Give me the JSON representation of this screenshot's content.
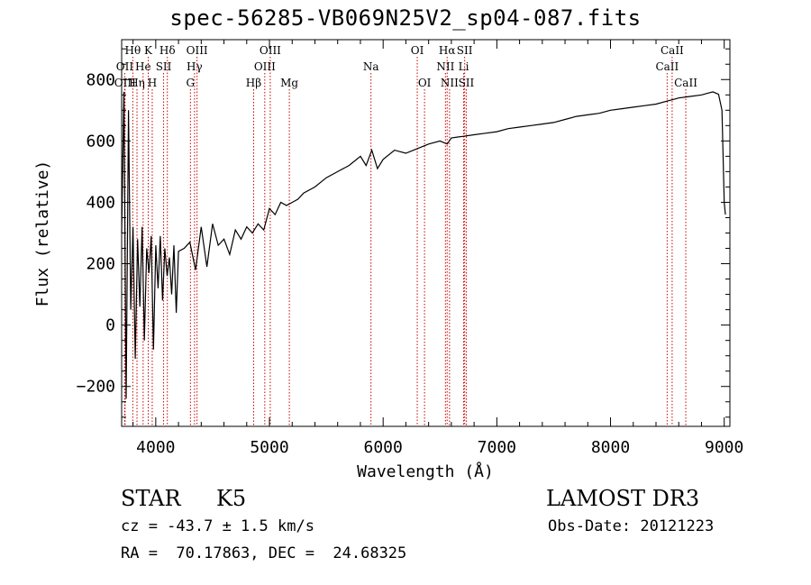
{
  "title": "spec-56285-VB069N25V2_sp04-087.fits",
  "info": {
    "class_label": "STAR",
    "subclass": "K5",
    "survey": "LAMOST DR3",
    "redshift_line": "cz = -43.7 ± 1.5 km/s",
    "obs_date_line": "Obs-Date: 20121223",
    "coords_line": "RA =  70.17863, DEC =  24.68325"
  },
  "colors": {
    "line_marker": "#cc0000",
    "spectrum": "#000000",
    "axis": "#000000"
  },
  "chart_data": {
    "type": "line",
    "title": "spec-56285-VB069N25V2_sp04-087.fits",
    "xlabel": "Wavelength (Å)",
    "ylabel": "Flux (relative)",
    "xlim": [
      3700,
      9050
    ],
    "ylim": [
      -330,
      930
    ],
    "x_ticks": [
      4000,
      5000,
      6000,
      7000,
      8000,
      9000
    ],
    "y_ticks": [
      -200,
      0,
      200,
      400,
      600,
      800
    ],
    "series": [
      {
        "name": "spectrum",
        "x": [
          3700,
          3720,
          3740,
          3760,
          3780,
          3800,
          3820,
          3840,
          3860,
          3880,
          3900,
          3920,
          3940,
          3960,
          3980,
          4000,
          4020,
          4040,
          4060,
          4080,
          4100,
          4120,
          4140,
          4160,
          4180,
          4200,
          4250,
          4300,
          4350,
          4400,
          4450,
          4500,
          4550,
          4600,
          4650,
          4700,
          4750,
          4800,
          4850,
          4900,
          4950,
          5000,
          5050,
          5100,
          5150,
          5200,
          5250,
          5300,
          5400,
          5500,
          5600,
          5700,
          5800,
          5850,
          5900,
          5950,
          6000,
          6100,
          6200,
          6300,
          6400,
          6500,
          6563,
          6600,
          6700,
          6800,
          6900,
          7000,
          7100,
          7200,
          7300,
          7400,
          7500,
          7600,
          7700,
          7800,
          7900,
          8000,
          8100,
          8200,
          8300,
          8400,
          8500,
          8550,
          8600,
          8700,
          8800,
          8850,
          8900,
          8950,
          8980,
          9000,
          9010
        ],
        "y": [
          300,
          760,
          -240,
          700,
          50,
          320,
          -110,
          280,
          60,
          320,
          -50,
          250,
          170,
          290,
          -80,
          260,
          120,
          290,
          80,
          250,
          160,
          220,
          100,
          260,
          40,
          240,
          250,
          270,
          180,
          320,
          190,
          330,
          260,
          280,
          230,
          310,
          280,
          320,
          300,
          330,
          310,
          380,
          360,
          400,
          390,
          400,
          410,
          430,
          450,
          480,
          500,
          520,
          550,
          520,
          570,
          510,
          540,
          570,
          560,
          575,
          590,
          600,
          590,
          610,
          615,
          620,
          625,
          630,
          640,
          645,
          650,
          655,
          660,
          670,
          680,
          685,
          690,
          700,
          705,
          710,
          715,
          720,
          730,
          735,
          740,
          745,
          750,
          755,
          760,
          752,
          700,
          400,
          360
        ]
      }
    ],
    "annotations": [
      {
        "label": "Hθ",
        "x": 3798,
        "row": 1
      },
      {
        "label": "OII",
        "x": 3727,
        "row": 2
      },
      {
        "label": "OIII",
        "x": 3730,
        "row": 3
      },
      {
        "label": "Hη",
        "x": 3835,
        "row": 3
      },
      {
        "label": "He",
        "x": 3889,
        "row": 2
      },
      {
        "label": "K",
        "x": 3934,
        "row": 1
      },
      {
        "label": "H",
        "x": 3969,
        "row": 3
      },
      {
        "label": "SII",
        "x": 4069,
        "row": 2
      },
      {
        "label": "Hδ",
        "x": 4102,
        "row": 1
      },
      {
        "label": "OIII",
        "x": 4363,
        "row": 1
      },
      {
        "label": "Hγ",
        "x": 4341,
        "row": 2
      },
      {
        "label": "G",
        "x": 4305,
        "row": 3
      },
      {
        "label": "Hβ",
        "x": 4861,
        "row": 3
      },
      {
        "label": "OIII",
        "x": 5007,
        "row": 1
      },
      {
        "label": "OIII",
        "x": 4959,
        "row": 2
      },
      {
        "label": "Mg",
        "x": 5175,
        "row": 3
      },
      {
        "label": "Na",
        "x": 5893,
        "row": 2
      },
      {
        "label": "OI",
        "x": 6300,
        "row": 1
      },
      {
        "label": "OI",
        "x": 6364,
        "row": 3
      },
      {
        "label": "Hα",
        "x": 6563,
        "row": 1
      },
      {
        "label": "NII",
        "x": 6548,
        "row": 2
      },
      {
        "label": "NII",
        "x": 6584,
        "row": 3
      },
      {
        "label": "SII",
        "x": 6717,
        "row": 1
      },
      {
        "label": "Li",
        "x": 6708,
        "row": 2
      },
      {
        "label": "SII",
        "x": 6731,
        "row": 3
      },
      {
        "label": "CaII",
        "x": 8542,
        "row": 1
      },
      {
        "label": "CaII",
        "x": 8498,
        "row": 2
      },
      {
        "label": "CaII",
        "x": 8662,
        "row": 3
      }
    ],
    "grid": false,
    "legend": "none"
  }
}
